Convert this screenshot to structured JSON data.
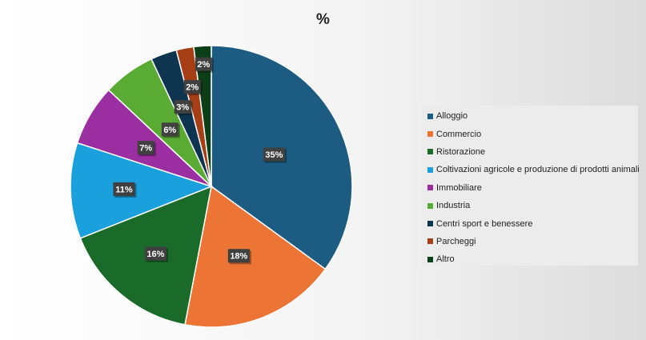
{
  "chart_data": {
    "type": "pie",
    "title": "%",
    "legend_position": "right",
    "categories": [
      "Alloggio",
      "Commercio",
      "Ristorazione",
      "Coltivazioni agricole e produzione di prodotti animali",
      "Immobiliare",
      "Industria",
      "Centri sport e benessere",
      "Parcheggi",
      "Altro"
    ],
    "values": [
      35,
      18,
      16,
      11,
      7,
      6,
      3,
      2,
      2
    ],
    "data_labels": [
      "35%",
      "18%",
      "16%",
      "11%",
      "7%",
      "6%",
      "3%",
      "2%",
      "2%"
    ],
    "colors": [
      "#1c5c82",
      "#ec7434",
      "#1a6b2a",
      "#1aa0dc",
      "#9b2ea0",
      "#5aab34",
      "#0d3550",
      "#a63f15",
      "#0c3f18"
    ]
  }
}
